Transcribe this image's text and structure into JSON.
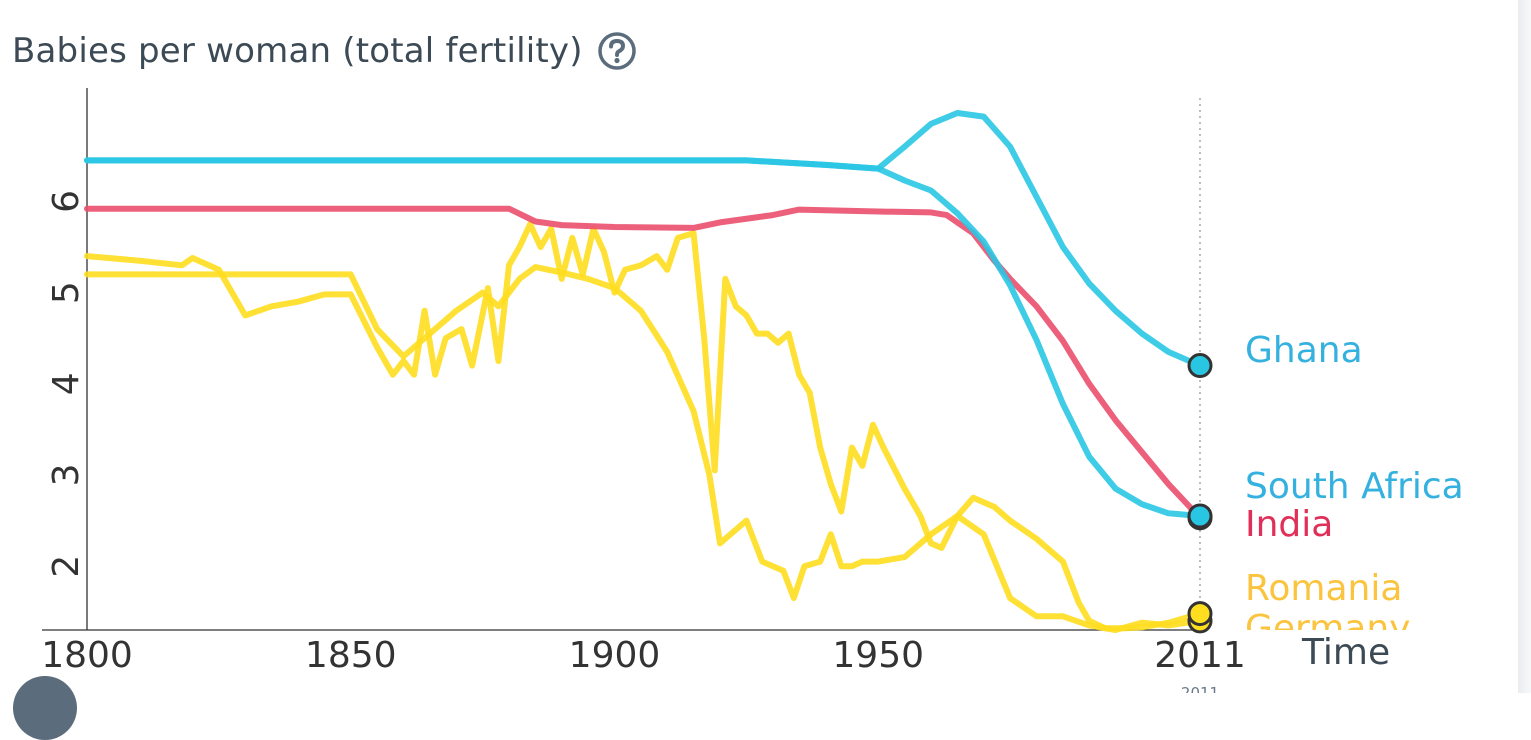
{
  "title": "Babies per woman (total fertility)",
  "help_icon": "question-circle-icon",
  "colors": {
    "Ghana": "#29c6e3",
    "South Africa": "#29c6e3",
    "India": "#ea4f6d",
    "Romania": "#ffdd1f",
    "Germany": "#ffdd1f",
    "Ghana_label": "#35b1e0",
    "South Africa_label": "#35b1e0",
    "India_label": "#e0305a",
    "Romania_label": "#fbc43e",
    "Germany_label": "#fbc43e",
    "axis_text": "#333333",
    "time_label": "#3c4a55"
  },
  "chart_data": {
    "type": "line",
    "title": "Babies per woman (total fertility)",
    "xlabel": "Time",
    "ylabel": "",
    "xlim": [
      1800,
      2011
    ],
    "ylim": [
      1.3,
      7.2
    ],
    "x_ticks": [
      "1800",
      "1850",
      "1900",
      "1950",
      "2011"
    ],
    "y_ticks": [
      "2",
      "3",
      "4",
      "5",
      "6"
    ],
    "x_current_marker": "2011",
    "grid": false,
    "legend": "end-of-line labels",
    "series": [
      {
        "name": "Ghana",
        "points": [
          [
            1800,
            6.45
          ],
          [
            1925,
            6.45
          ],
          [
            1940,
            6.4
          ],
          [
            1950,
            6.36
          ],
          [
            1955,
            6.6
          ],
          [
            1960,
            6.85
          ],
          [
            1965,
            6.97
          ],
          [
            1970,
            6.93
          ],
          [
            1975,
            6.6
          ],
          [
            1980,
            6.05
          ],
          [
            1985,
            5.5
          ],
          [
            1990,
            5.1
          ],
          [
            1995,
            4.8
          ],
          [
            2000,
            4.55
          ],
          [
            2005,
            4.35
          ],
          [
            2011,
            4.2
          ]
        ]
      },
      {
        "name": "South Africa",
        "points": [
          [
            1800,
            6.45
          ],
          [
            1925,
            6.45
          ],
          [
            1940,
            6.4
          ],
          [
            1950,
            6.36
          ],
          [
            1955,
            6.23
          ],
          [
            1960,
            6.12
          ],
          [
            1965,
            5.87
          ],
          [
            1970,
            5.56
          ],
          [
            1975,
            5.08
          ],
          [
            1980,
            4.48
          ],
          [
            1985,
            3.78
          ],
          [
            1990,
            3.2
          ],
          [
            1995,
            2.85
          ],
          [
            2000,
            2.68
          ],
          [
            2005,
            2.58
          ],
          [
            2011,
            2.55
          ]
        ]
      },
      {
        "name": "India",
        "points": [
          [
            1800,
            5.92
          ],
          [
            1880,
            5.92
          ],
          [
            1885,
            5.78
          ],
          [
            1890,
            5.74
          ],
          [
            1900,
            5.72
          ],
          [
            1915,
            5.71
          ],
          [
            1920,
            5.77
          ],
          [
            1930,
            5.85
          ],
          [
            1935,
            5.91
          ],
          [
            1950,
            5.89
          ],
          [
            1960,
            5.88
          ],
          [
            1963,
            5.85
          ],
          [
            1968,
            5.65
          ],
          [
            1972,
            5.35
          ],
          [
            1975,
            5.15
          ],
          [
            1980,
            4.85
          ],
          [
            1985,
            4.47
          ],
          [
            1990,
            4.0
          ],
          [
            1995,
            3.6
          ],
          [
            2000,
            3.25
          ],
          [
            2005,
            2.9
          ],
          [
            2011,
            2.53
          ]
        ]
      },
      {
        "name": "Romania",
        "points": [
          [
            1800,
            5.2
          ],
          [
            1850,
            5.2
          ],
          [
            1855,
            4.6
          ],
          [
            1860,
            4.3
          ],
          [
            1865,
            4.55
          ],
          [
            1870,
            4.8
          ],
          [
            1875,
            5.0
          ],
          [
            1878,
            4.85
          ],
          [
            1882,
            5.15
          ],
          [
            1885,
            5.28
          ],
          [
            1890,
            5.22
          ],
          [
            1895,
            5.15
          ],
          [
            1900,
            5.05
          ],
          [
            1905,
            4.8
          ],
          [
            1910,
            4.35
          ],
          [
            1915,
            3.7
          ],
          [
            1918,
            3.0
          ],
          [
            1920,
            2.25
          ],
          [
            1925,
            2.5
          ],
          [
            1928,
            2.05
          ],
          [
            1932,
            1.95
          ],
          [
            1934,
            1.65
          ],
          [
            1936,
            2.0
          ],
          [
            1939,
            2.05
          ],
          [
            1941,
            2.35
          ],
          [
            1943,
            2.0
          ],
          [
            1945,
            2.0
          ],
          [
            1947,
            2.05
          ],
          [
            1950,
            2.05
          ],
          [
            1955,
            2.1
          ],
          [
            1960,
            2.35
          ],
          [
            1965,
            2.55
          ],
          [
            1968,
            2.75
          ],
          [
            1972,
            2.65
          ],
          [
            1975,
            2.5
          ],
          [
            1980,
            2.3
          ],
          [
            1985,
            2.05
          ],
          [
            1988,
            1.6
          ],
          [
            1990,
            1.4
          ],
          [
            1993,
            1.32
          ],
          [
            1997,
            1.32
          ],
          [
            2000,
            1.33
          ],
          [
            2005,
            1.38
          ],
          [
            2011,
            1.48
          ]
        ]
      },
      {
        "name": "Germany",
        "points": [
          [
            1800,
            5.4
          ],
          [
            1810,
            5.35
          ],
          [
            1818,
            5.3
          ],
          [
            1820,
            5.38
          ],
          [
            1825,
            5.25
          ],
          [
            1830,
            4.75
          ],
          [
            1835,
            4.85
          ],
          [
            1840,
            4.9
          ],
          [
            1845,
            4.98
          ],
          [
            1850,
            4.98
          ],
          [
            1855,
            4.4
          ],
          [
            1858,
            4.1
          ],
          [
            1860,
            4.25
          ],
          [
            1862,
            4.1
          ],
          [
            1864,
            4.8
          ],
          [
            1866,
            4.1
          ],
          [
            1868,
            4.5
          ],
          [
            1871,
            4.6
          ],
          [
            1873,
            4.2
          ],
          [
            1876,
            5.05
          ],
          [
            1878,
            4.25
          ],
          [
            1880,
            5.3
          ],
          [
            1882,
            5.5
          ],
          [
            1884,
            5.75
          ],
          [
            1886,
            5.5
          ],
          [
            1888,
            5.7
          ],
          [
            1890,
            5.15
          ],
          [
            1892,
            5.6
          ],
          [
            1894,
            5.2
          ],
          [
            1896,
            5.7
          ],
          [
            1898,
            5.45
          ],
          [
            1900,
            5.0
          ],
          [
            1902,
            5.25
          ],
          [
            1905,
            5.3
          ],
          [
            1908,
            5.4
          ],
          [
            1910,
            5.25
          ],
          [
            1912,
            5.6
          ],
          [
            1915,
            5.65
          ],
          [
            1917,
            4.5
          ],
          [
            1919,
            3.05
          ],
          [
            1921,
            5.15
          ],
          [
            1923,
            4.85
          ],
          [
            1925,
            4.75
          ],
          [
            1927,
            4.55
          ],
          [
            1929,
            4.55
          ],
          [
            1931,
            4.45
          ],
          [
            1933,
            4.55
          ],
          [
            1935,
            4.1
          ],
          [
            1937,
            3.9
          ],
          [
            1939,
            3.3
          ],
          [
            1941,
            2.9
          ],
          [
            1943,
            2.6
          ],
          [
            1945,
            3.3
          ],
          [
            1947,
            3.1
          ],
          [
            1949,
            3.55
          ],
          [
            1951,
            3.3
          ],
          [
            1955,
            2.85
          ],
          [
            1958,
            2.55
          ],
          [
            1960,
            2.25
          ],
          [
            1962,
            2.2
          ],
          [
            1965,
            2.55
          ],
          [
            1970,
            2.35
          ],
          [
            1975,
            1.65
          ],
          [
            1980,
            1.45
          ],
          [
            1985,
            1.45
          ],
          [
            1990,
            1.35
          ],
          [
            1995,
            1.3
          ],
          [
            2000,
            1.38
          ],
          [
            2005,
            1.35
          ],
          [
            2011,
            1.4
          ]
        ]
      }
    ]
  }
}
